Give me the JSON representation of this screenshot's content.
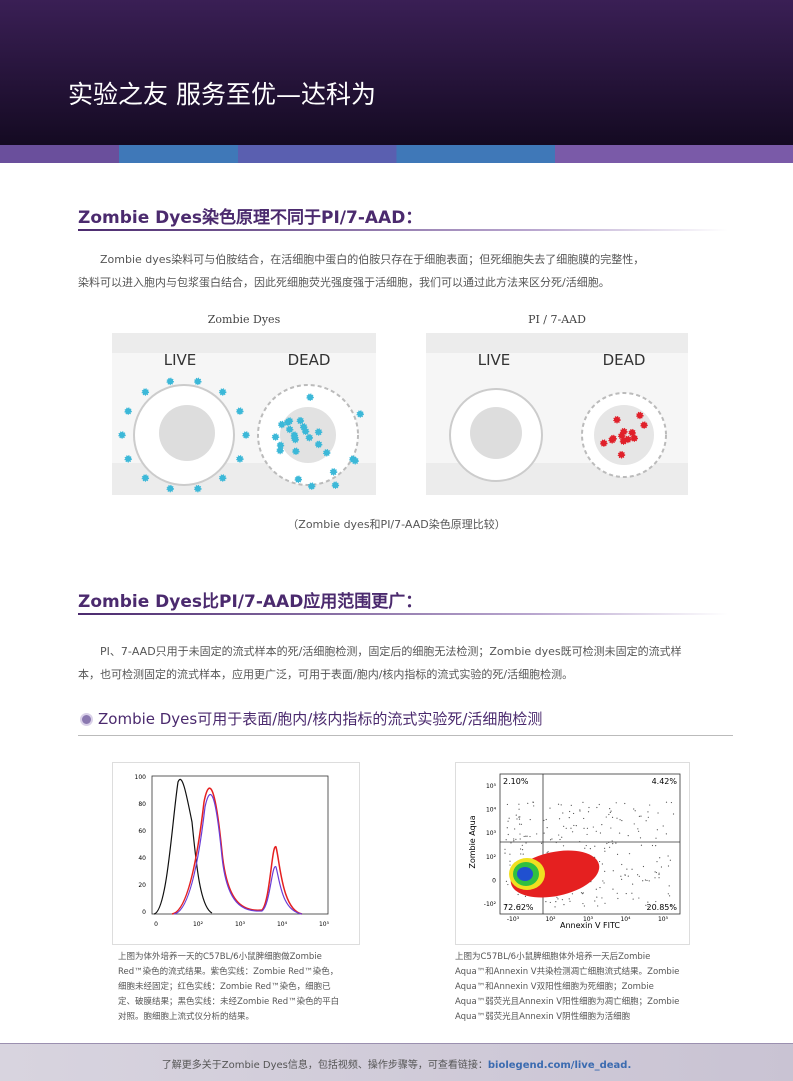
{
  "header": {
    "title": "实验之友 服务至优—达科为"
  },
  "section1": {
    "heading": "Zombie Dyes染色原理不同于PI/7-AAD：",
    "paragraph": [
      "Zombie dyes染料可与伯胺结合，在活细胞中蛋白的伯胺只存在于细胞表面；但死细胞失去了细胞膜的完整性，",
      "染料可以进入胞内与包浆蛋白结合，因此死细胞荧光强度强于活细胞，我们可以通过此方法来区分死/活细胞。"
    ],
    "figures": [
      {
        "title": "Zombie Dyes",
        "live": "LIVE",
        "dead": "DEAD"
      },
      {
        "title": "PI / 7-AAD",
        "live": "LIVE",
        "dead": "DEAD"
      }
    ],
    "caption": "（Zombie dyes和PI/7-AAD染色原理比较）"
  },
  "section2": {
    "heading": "Zombie Dyes比PI/7-AAD应用范围更广：",
    "paragraph": [
      "PI、7-AAD只用于未固定的流式样本的死/活细胞检测，固定后的细胞无法检测；Zombie dyes既可检测未固定的流式样",
      "本，也可检测固定的流式样本，应用更广泛，可用于表面/胞内/核内指标的流式实验的死/活细胞检测。"
    ],
    "subheading": "Zombie Dyes可用于表面/胞内/核内指标的流式实验死/活细胞检测",
    "histogram": {
      "yticks": [
        "100",
        "80",
        "60",
        "40",
        "20",
        "0"
      ],
      "xticks": [
        "0",
        "10²",
        "10³",
        "10⁴",
        "10⁵"
      ],
      "caption": [
        "上图为体外培养一天的C57BL/6小鼠脾细胞做Zombie",
        "Red™染色的流式结果。紫色实线：Zombie Red™染色，",
        "细胞未经固定；红色实线：Zombie Red™染色，细胞已",
        "定、破膜结果；黑色实线：未经Zombie Red™染色的平白",
        "对照。胞细胞上流式仪分析的结果。"
      ]
    },
    "flow": {
      "quadrants": [
        "2.10%",
        "4.42%",
        "72.62%",
        "20.85%"
      ],
      "ylabel": "Zombie Aqua",
      "xlabel": "Annexin V FITC",
      "yticks": [
        "10⁵",
        "10⁴",
        "10³",
        "10²",
        "0",
        "-10²"
      ],
      "xticks": [
        "-10³",
        "10²",
        "10³",
        "10⁴",
        "10⁵"
      ],
      "caption": [
        "上图为C57BL/6小鼠脾细胞体外培养一天后Zombie",
        "Aqua™和Annexin V共染检测凋亡细胞流式结果。Zombie",
        "Aqua™和Annexin V双阳性细胞为死细胞；Zombie",
        "Aqua™弱荧光且Annexin V阳性细胞为凋亡细胞；Zombie",
        "Aqua™弱荧光且Annexin V阴性细胞为活细胞"
      ]
    }
  },
  "footer": {
    "text": "了解更多关于Zombie Dyes信息，包括视频、操作步骤等，可查看链接：",
    "link": "biolegend.com/live_dead."
  }
}
